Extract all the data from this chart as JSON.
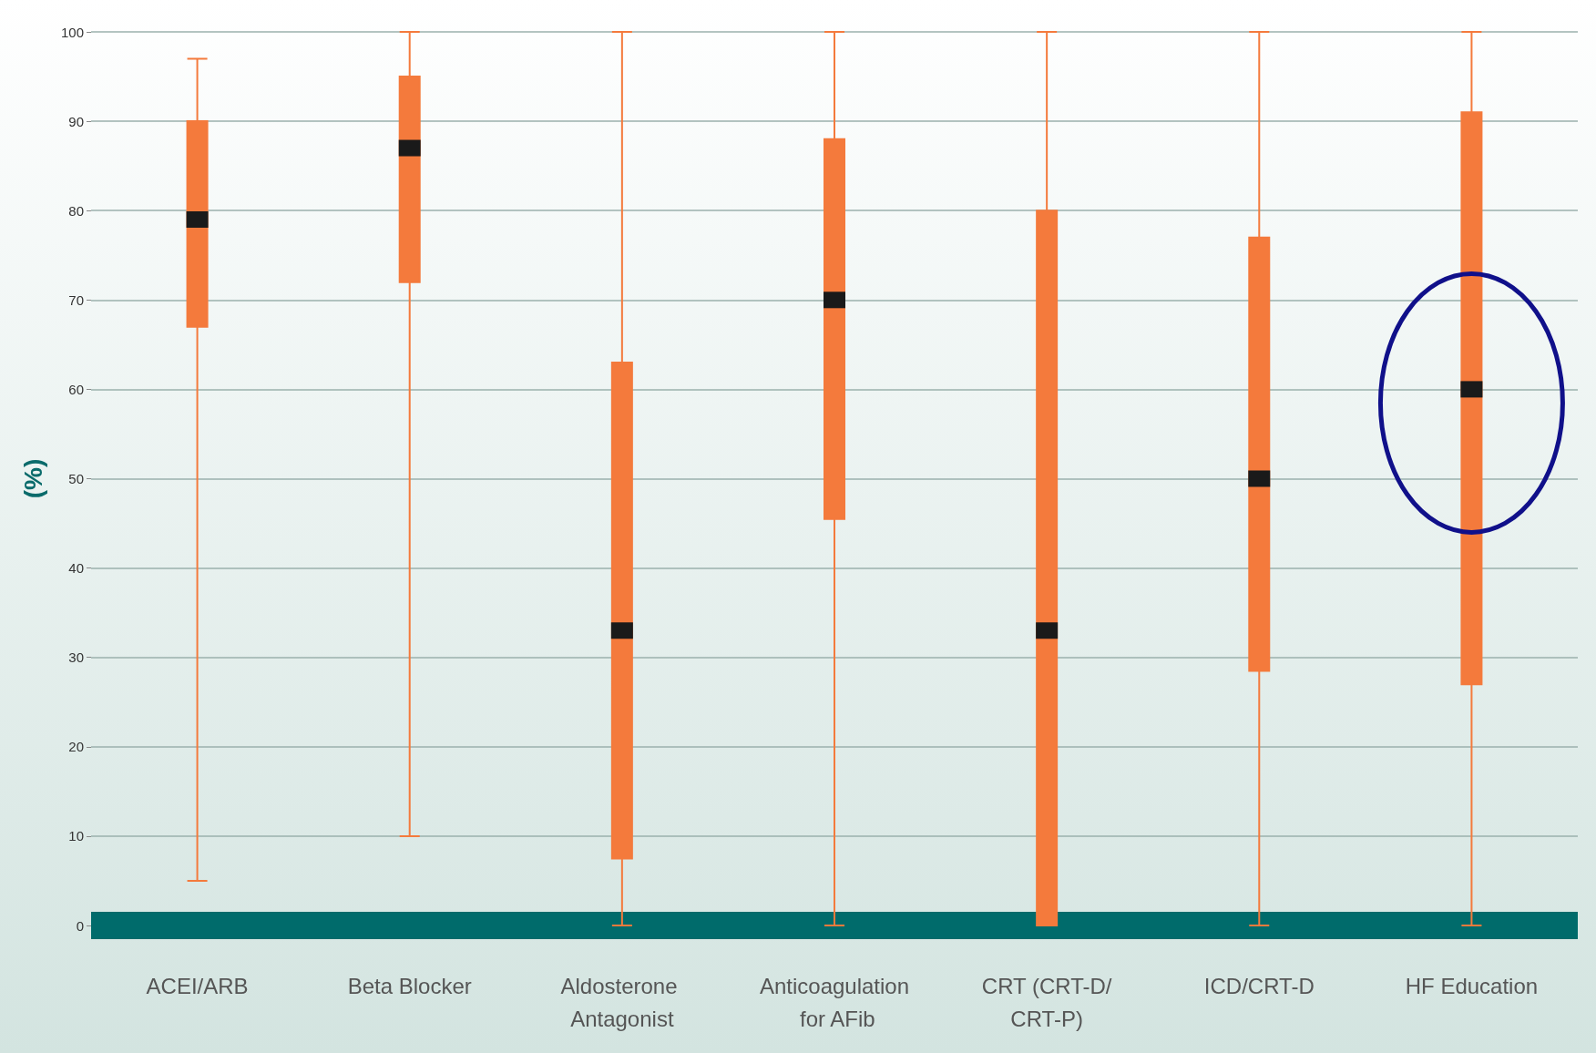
{
  "chart_data": {
    "type": "box",
    "ylabel": "(%)",
    "categories": [
      "ACEI/ARB",
      "Beta Blocker",
      "Aldosterone Antagonist",
      "Anticoagulation for AFib",
      "CRT (CRT-D/CRT-P)",
      "ICD/CRT-D",
      "HF Education"
    ],
    "color": "#f47a3c",
    "boxes": [
      {
        "low": 5,
        "q1": 67,
        "median": 79,
        "q3": 90,
        "high": 97
      },
      {
        "low": 10,
        "q1": 72,
        "median": 87,
        "q3": 95,
        "high": 100
      },
      {
        "low": 0,
        "q1": 7.5,
        "median": 33,
        "q3": 63,
        "high": 100
      },
      {
        "low": 0,
        "q1": 45.5,
        "median": 70,
        "q3": 88,
        "high": 100
      },
      {
        "low": 0,
        "q1": 0,
        "median": 33,
        "q3": 80,
        "high": 100
      },
      {
        "low": 0,
        "q1": 28.5,
        "median": 50,
        "q3": 77,
        "high": 100
      },
      {
        "low": 0,
        "q1": 27,
        "median": 60,
        "q3": 91,
        "high": 100
      }
    ],
    "ylim": [
      0,
      100
    ],
    "yticks": [
      0,
      10,
      20,
      30,
      40,
      50,
      60,
      70,
      80,
      90,
      100
    ],
    "grid": "y"
  }
}
